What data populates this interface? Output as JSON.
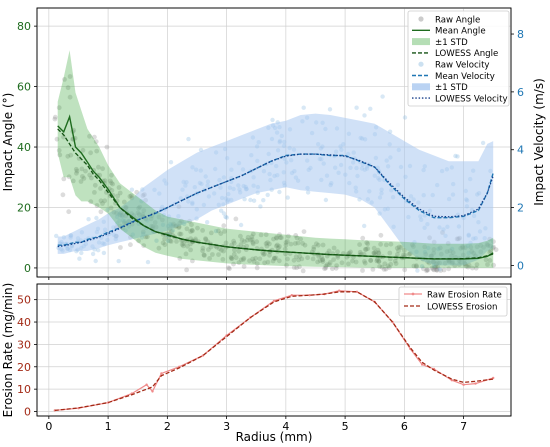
{
  "colors": {
    "angle": "#2ca02c",
    "angle_dark": "#1e6b1e",
    "velocity": "#1f77b4",
    "velocity_band": "#a9c8f0",
    "raw_angle": "#808080",
    "raw_velocity": "#7fb3dd",
    "erosion": "#a32a16",
    "erosion_raw": "#f08a8a",
    "grid": "#d0d0d0"
  },
  "chart_data": [
    {
      "type": "scatter",
      "xlabel": "",
      "ylabel": "Impact Angle (°)",
      "y2label": "Impact Velocity (m/s)",
      "xlim": [
        -0.2,
        7.8
      ],
      "ylim": [
        -3,
        86
      ],
      "y2lim": [
        -0.4,
        8.9
      ],
      "xticks": [
        "0",
        "1",
        "2",
        "3",
        "4",
        "5",
        "6",
        "7"
      ],
      "yticks": [
        "0",
        "20",
        "40",
        "60",
        "80"
      ],
      "y2ticks": [
        "0",
        "2",
        "4",
        "6",
        "8"
      ],
      "grid": true,
      "legend_position": "top-right",
      "legend": [
        {
          "label": "Raw Angle",
          "style": "marker-gray"
        },
        {
          "label": "Mean Angle",
          "style": "solid-green"
        },
        {
          "label": "±1 STD",
          "style": "patch-green"
        },
        {
          "label": "LOWESS Angle",
          "style": "dashed-green"
        },
        {
          "label": "Raw Velocity",
          "style": "marker-blue"
        },
        {
          "label": "Mean Velocity",
          "style": "dashed-blue"
        },
        {
          "label": "±1 STD",
          "style": "patch-blue"
        },
        {
          "label": "LOWESS Velocity",
          "style": "dotted-blue"
        }
      ],
      "x": [
        0.15,
        0.25,
        0.35,
        0.45,
        0.55,
        0.65,
        0.75,
        0.85,
        1.0,
        1.2,
        1.4,
        1.6,
        1.8,
        2.0,
        2.25,
        2.5,
        2.75,
        3.0,
        3.25,
        3.5,
        3.75,
        4.0,
        4.25,
        4.5,
        4.75,
        5.0,
        5.25,
        5.5,
        5.75,
        6.0,
        6.25,
        6.5,
        6.75,
        7.0,
        7.25,
        7.4,
        7.5
      ],
      "series": [
        {
          "name": "Mean Angle",
          "axis": "left",
          "values": [
            47,
            45,
            50,
            40,
            38,
            35,
            32,
            30,
            26,
            20,
            17,
            14,
            12,
            11,
            9.5,
            8.5,
            7.8,
            7,
            6.5,
            6,
            5.6,
            5.3,
            5,
            4.7,
            4.4,
            4.2,
            4,
            3.8,
            3.6,
            3.4,
            3.2,
            3,
            3,
            3,
            3.2,
            3.8,
            5
          ]
        },
        {
          "name": "Std Upper Angle",
          "axis": "left",
          "values": [
            55,
            63,
            72,
            58,
            52,
            46,
            43,
            40,
            34,
            28,
            25,
            22,
            19,
            17,
            16,
            15,
            14,
            13,
            12.5,
            12,
            11.5,
            11,
            10.5,
            10,
            9.7,
            9.5,
            9.2,
            9,
            8.8,
            8.6,
            8.3,
            8,
            8,
            8,
            8.2,
            9,
            10
          ]
        },
        {
          "name": "Std Lower Angle",
          "axis": "left",
          "values": [
            38,
            30,
            30,
            24,
            22,
            22,
            21,
            20,
            18,
            13,
            10,
            7,
            5,
            4,
            3,
            2.5,
            2,
            1.5,
            1.2,
            1,
            0.8,
            0.6,
            0.5,
            0.4,
            0.3,
            0.2,
            0.1,
            0,
            0,
            0,
            0,
            0,
            0,
            0,
            0,
            0,
            0
          ]
        },
        {
          "name": "LOWESS Angle",
          "axis": "left",
          "values": [
            46,
            44,
            41,
            38,
            36,
            34,
            31,
            29,
            25,
            20,
            16.5,
            14,
            12,
            10.8,
            9.5,
            8.5,
            7.8,
            7,
            6.5,
            6,
            5.6,
            5.3,
            5,
            4.7,
            4.4,
            4.2,
            4,
            3.8,
            3.6,
            3.4,
            3.2,
            3,
            3,
            3.1,
            3.4,
            4,
            4.6
          ]
        },
        {
          "name": "Mean Velocity",
          "axis": "right",
          "values": [
            0.7,
            0.7,
            0.75,
            0.8,
            0.8,
            0.9,
            0.95,
            1,
            1.15,
            1.3,
            1.5,
            1.65,
            1.8,
            2,
            2.25,
            2.5,
            2.7,
            2.9,
            3.1,
            3.35,
            3.6,
            3.8,
            3.85,
            3.85,
            3.8,
            3.8,
            3.6,
            3.4,
            2.8,
            2.3,
            1.9,
            1.65,
            1.65,
            1.7,
            1.9,
            2.5,
            3.2
          ]
        },
        {
          "name": "Std Upper Velocity",
          "axis": "right",
          "values": [
            1,
            1,
            1.1,
            1.2,
            1.3,
            1.4,
            1.5,
            1.6,
            1.8,
            2,
            2.3,
            2.7,
            3,
            3.3,
            3.6,
            3.9,
            4.1,
            4.3,
            4.5,
            4.7,
            4.9,
            5,
            5.2,
            5.25,
            5.2,
            5.1,
            5,
            4.9,
            4.6,
            4.3,
            4,
            3.8,
            3.6,
            3.6,
            3.6,
            4.2,
            4.3
          ]
        },
        {
          "name": "Std Lower Velocity",
          "axis": "right",
          "values": [
            0.4,
            0.4,
            0.45,
            0.5,
            0.5,
            0.5,
            0.55,
            0.6,
            0.7,
            0.8,
            0.9,
            1,
            1.1,
            1.2,
            1.4,
            1.6,
            1.9,
            2.1,
            2.3,
            2.5,
            2.6,
            2.7,
            2.6,
            2.55,
            2.5,
            2.45,
            2.3,
            2,
            1.3,
            0.6,
            0.2,
            0,
            0,
            0,
            0.2,
            0.5,
            0.6
          ]
        },
        {
          "name": "LOWESS Velocity",
          "axis": "right",
          "values": [
            0.65,
            0.68,
            0.72,
            0.76,
            0.8,
            0.86,
            0.92,
            0.98,
            1.1,
            1.28,
            1.48,
            1.65,
            1.82,
            2,
            2.25,
            2.5,
            2.7,
            2.9,
            3.1,
            3.35,
            3.6,
            3.78,
            3.85,
            3.85,
            3.82,
            3.78,
            3.62,
            3.4,
            2.85,
            2.35,
            1.95,
            1.7,
            1.68,
            1.72,
            1.95,
            2.5,
            3.1
          ]
        }
      ]
    },
    {
      "type": "line",
      "xlabel": "Radius (mm)",
      "ylabel": "Erosion Rate (mg/min)",
      "xlim": [
        -0.2,
        7.8
      ],
      "ylim": [
        -2,
        57
      ],
      "xticks": [
        "0",
        "1",
        "2",
        "3",
        "4",
        "5",
        "6",
        "7"
      ],
      "yticks": [
        "0",
        "10",
        "20",
        "30",
        "40",
        "50"
      ],
      "grid": true,
      "legend_position": "top-right",
      "legend": [
        {
          "label": "Raw Erosion Rate",
          "style": "solid-pink-marker"
        },
        {
          "label": "LOWESS Erosion",
          "style": "dashed-red"
        }
      ],
      "x": [
        0.1,
        0.5,
        1.0,
        1.4,
        1.65,
        1.75,
        1.9,
        2.2,
        2.6,
        3.0,
        3.4,
        3.8,
        4.1,
        4.4,
        4.65,
        4.9,
        5.2,
        5.5,
        5.8,
        6.1,
        6.3,
        6.5,
        6.8,
        7.0,
        7.2,
        7.5
      ],
      "series": [
        {
          "name": "Raw Erosion Rate",
          "values": [
            0.5,
            1.5,
            4,
            8,
            12,
            9,
            17,
            20,
            25,
            34,
            42,
            49.5,
            52,
            52,
            52.5,
            54,
            53.5,
            49,
            40,
            28,
            21,
            19,
            14,
            12,
            12.5,
            15
          ]
        },
        {
          "name": "LOWESS Erosion",
          "values": [
            0.5,
            1.6,
            4,
            7.5,
            10,
            11,
            16,
            19.5,
            25,
            33.5,
            42,
            49,
            51.5,
            52,
            52.5,
            53.5,
            53.5,
            49,
            40,
            28.5,
            22,
            18.5,
            14.5,
            13,
            13.5,
            14.5
          ]
        }
      ]
    }
  ]
}
